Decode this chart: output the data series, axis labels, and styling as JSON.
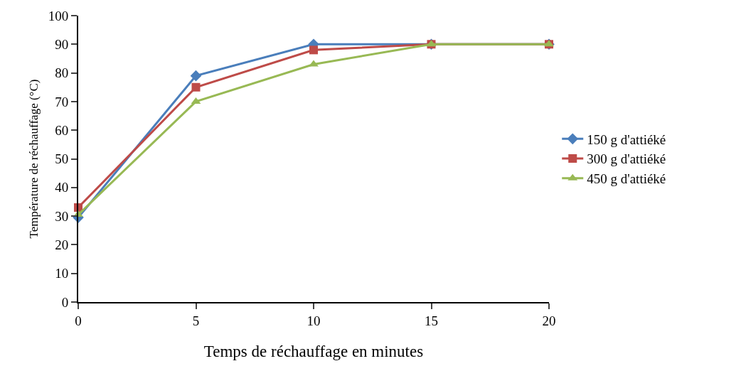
{
  "chart_data": {
    "type": "line",
    "xlabel": "Temps de réchauffage en minutes",
    "ylabel": "Température de réchauffage (°C)",
    "x": [
      0,
      5,
      10,
      15,
      20
    ],
    "xlim": [
      0,
      20
    ],
    "xticks": [
      0,
      5,
      10,
      15,
      20
    ],
    "ylim": [
      0,
      100
    ],
    "yticks": [
      0,
      10,
      20,
      30,
      40,
      50,
      60,
      70,
      80,
      90,
      100
    ],
    "series": [
      {
        "name": "150 g d'attiéké",
        "color": "#4a7ebb",
        "marker": "diamond",
        "values": [
          29.5,
          79,
          90,
          90,
          90
        ]
      },
      {
        "name": "300 g d'attiéké",
        "color": "#be4b48",
        "marker": "square",
        "values": [
          33,
          75,
          88,
          90,
          90
        ]
      },
      {
        "name": "450 g d'attiéké",
        "color": "#98b954",
        "marker": "triangle",
        "values": [
          30.5,
          70,
          83,
          90,
          90
        ]
      }
    ],
    "legend": "right",
    "line_style": "solid"
  }
}
